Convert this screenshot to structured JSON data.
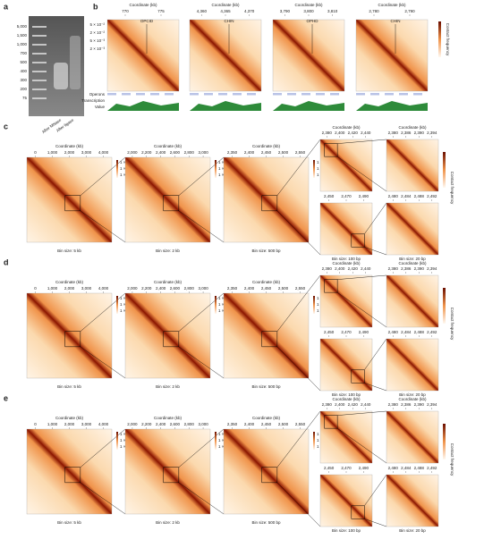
{
  "panel_a": {
    "label": "a",
    "ladder": [
      "5,000",
      "1,500",
      "1,000",
      "700",
      "500",
      "400",
      "300",
      "200",
      "75"
    ],
    "lanes": [
      "After MNase",
      "After ligase"
    ]
  },
  "panel_b": {
    "label": "b",
    "maps": [
      {
        "title": "Coordinate (kb)",
        "ticks": [
          "770",
          "775"
        ],
        "annotation": "OPCID"
      },
      {
        "title": "Coordinate (kb)",
        "ticks": [
          "4,360",
          "4,365",
          "4,370"
        ],
        "annotation": "CHIN"
      },
      {
        "title": "Coordinate (kb)",
        "ticks": [
          "3,790",
          "3,800",
          "3,810"
        ],
        "annotation": "OPHD"
      },
      {
        "title": "Coordinate (kb)",
        "ticks": [
          "2,780",
          "2,790"
        ],
        "annotation": "CHIN"
      }
    ],
    "colorbar_ticks": [
      "5 × 10⁻²",
      "2 × 10⁻²",
      "5 × 10⁻³",
      "2 × 10⁻³"
    ],
    "colorbar_label": "Contact frequency",
    "tracks": [
      "Operons",
      "Transcription",
      "Value"
    ]
  },
  "rows": [
    {
      "label": "c",
      "big": [
        {
          "title": "Coordinate (kb)",
          "ticks": [
            "0",
            "1,000",
            "2,000",
            "3,000",
            "4,000"
          ],
          "bin": "Bin size: 5 kb"
        },
        {
          "title": "Coordinate (kb)",
          "ticks": [
            "2,000",
            "2,200",
            "2,400",
            "2,600",
            "2,800",
            "3,000"
          ],
          "bin": "Bin size: 2 kb"
        },
        {
          "title": "Coordinate (kb)",
          "ticks": [
            "2,350",
            "2,400",
            "2,450",
            "2,500",
            "2,550"
          ],
          "bin": "Bin size: 500 bp"
        }
      ],
      "small": [
        {
          "title": "Coordinate (kb)",
          "ticks": [
            "2,380",
            "2,400",
            "2,420",
            "2,440"
          ]
        },
        {
          "title": "Coordinate (kb)",
          "ticks": [
            "2,380",
            "2,386",
            "2,390",
            "2,394"
          ]
        },
        {
          "ticks": [
            "2,450",
            "2,470",
            "2,490"
          ],
          "bin": "Bin size: 100 bp"
        },
        {
          "ticks": [
            "2,480",
            "2,484",
            "2,488",
            "2,492"
          ],
          "bin": "Bin size: 20 bp"
        }
      ],
      "colorbar_ticks": [
        "1 × 10⁻¹",
        "1 × 10⁻²",
        "1 × 10⁻³"
      ],
      "colorbar_label": "Contact frequency"
    },
    {
      "label": "d",
      "big": [
        {
          "title": "Coordinate (kb)",
          "ticks": [
            "0",
            "1,000",
            "2,000",
            "3,000",
            "4,000"
          ],
          "bin": "Bin size: 5 kb"
        },
        {
          "title": "Coordinate (kb)",
          "ticks": [
            "2,000",
            "2,200",
            "2,400",
            "2,600",
            "2,800",
            "3,000"
          ],
          "bin": "Bin size: 2 kb"
        },
        {
          "title": "Coordinate (kb)",
          "ticks": [
            "2,350",
            "2,400",
            "2,450",
            "2,500",
            "2,550"
          ],
          "bin": "Bin size: 500 bp"
        }
      ],
      "small": [
        {
          "title": "Coordinate (kb)",
          "ticks": [
            "2,380",
            "2,400",
            "2,420",
            "2,440"
          ]
        },
        {
          "title": "Coordinate (kb)",
          "ticks": [
            "2,380",
            "2,386",
            "2,390",
            "2,394"
          ]
        },
        {
          "ticks": [
            "2,450",
            "2,470",
            "2,490"
          ],
          "bin": "Bin size: 100 bp"
        },
        {
          "ticks": [
            "2,480",
            "2,484",
            "2,488",
            "2,492"
          ],
          "bin": "Bin size: 20 bp"
        }
      ],
      "colorbar_ticks": [
        "1 × 10⁻¹",
        "1 × 10⁻²",
        "1 × 10⁻³"
      ],
      "colorbar_label": "Contact frequency"
    },
    {
      "label": "e",
      "big": [
        {
          "title": "Coordinate (kb)",
          "ticks": [
            "0",
            "1,000",
            "2,000",
            "3,000",
            "4,000"
          ],
          "bin": "Bin size: 5 kb"
        },
        {
          "title": "Coordinate (kb)",
          "ticks": [
            "2,000",
            "2,200",
            "2,400",
            "2,600",
            "2,800",
            "3,000"
          ],
          "bin": "Bin size: 2 kb"
        },
        {
          "title": "Coordinate (kb)",
          "ticks": [
            "2,350",
            "2,400",
            "2,450",
            "2,500",
            "2,550"
          ],
          "bin": "Bin size: 500 bp"
        }
      ],
      "small": [
        {
          "title": "Coordinate (kb)",
          "ticks": [
            "2,380",
            "2,400",
            "2,420",
            "2,440"
          ]
        },
        {
          "title": "Coordinate (kb)",
          "ticks": [
            "2,380",
            "2,386",
            "2,390",
            "2,394"
          ]
        },
        {
          "ticks": [
            "2,450",
            "2,470",
            "2,490"
          ],
          "bin": "Bin size: 100 bp"
        },
        {
          "ticks": [
            "2,480",
            "2,484",
            "2,488",
            "2,492"
          ],
          "bin": "Bin size: 20 bp"
        }
      ],
      "colorbar_ticks": [
        "1 × 10⁻¹",
        "1 × 10⁻²",
        "1 × 10⁻³"
      ],
      "colorbar_label": "Contact frequency"
    }
  ]
}
